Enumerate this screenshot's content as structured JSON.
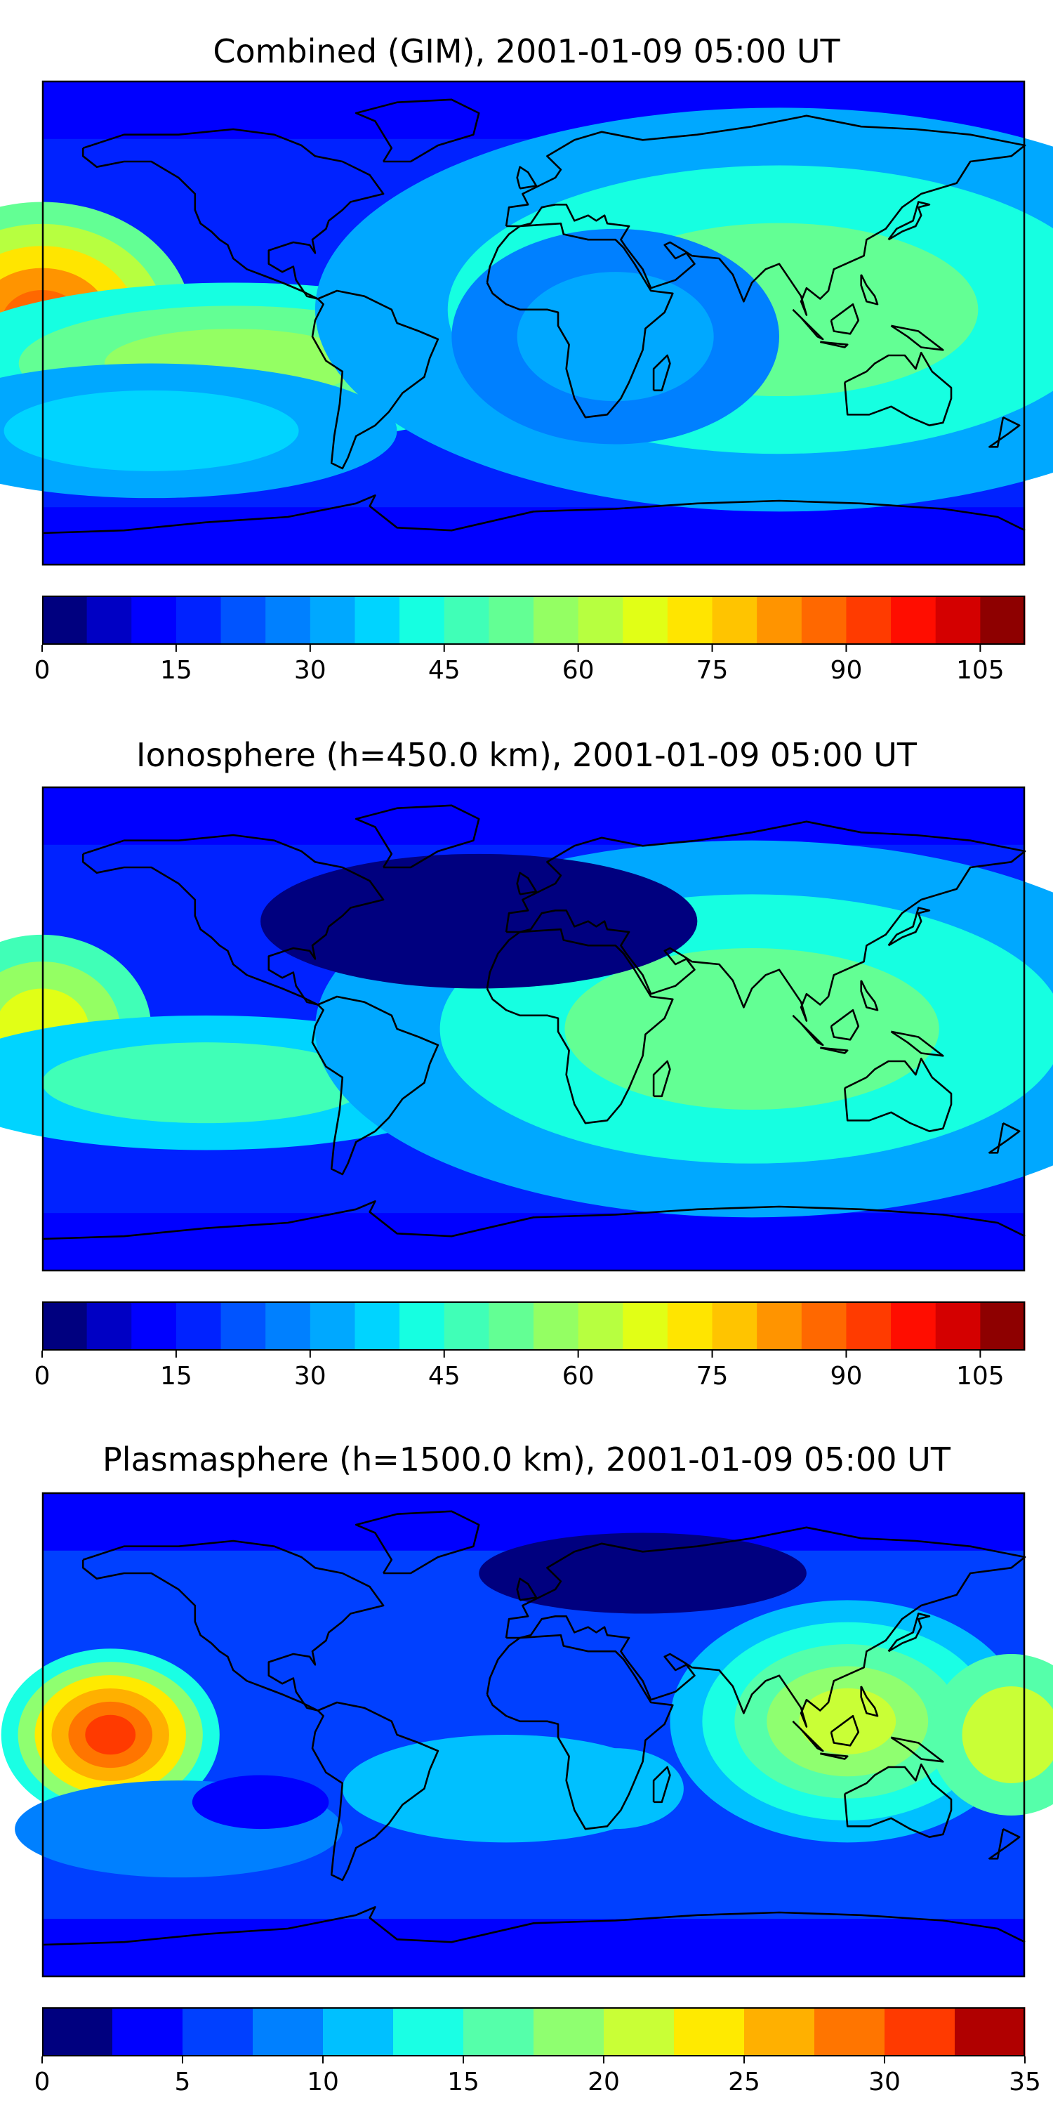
{
  "panels": [
    {
      "title": "Combined (GIM), 2001-01-09 05:00 UT",
      "colorbar": {
        "min": 0,
        "max": 110,
        "levels": 22,
        "ticks": [
          "0",
          "15",
          "30",
          "45",
          "60",
          "75",
          "90",
          "105"
        ],
        "tick_values": [
          0,
          15,
          30,
          45,
          60,
          75,
          90,
          105
        ]
      }
    },
    {
      "title": "Ionosphere  (h=450.0 km), 2001-01-09 05:00 UT",
      "colorbar": {
        "min": 0,
        "max": 110,
        "levels": 22,
        "ticks": [
          "0",
          "15",
          "30",
          "45",
          "60",
          "75",
          "90",
          "105"
        ],
        "tick_values": [
          0,
          15,
          30,
          45,
          60,
          75,
          90,
          105
        ]
      }
    },
    {
      "title": "Plasmasphere (h=1500.0 km), 2001-01-09 05:00 UT",
      "colorbar": {
        "min": 0,
        "max": 35,
        "levels": 14,
        "ticks": [
          "0",
          "5",
          "10",
          "15",
          "20",
          "25",
          "30",
          "35"
        ],
        "tick_values": [
          0,
          5,
          10,
          15,
          20,
          25,
          30,
          35
        ]
      }
    }
  ],
  "colormap": [
    "#00007f",
    "#0000c4",
    "#0000ff",
    "#0022ff",
    "#0054ff",
    "#0080ff",
    "#00a8ff",
    "#00d4ff",
    "#16ffe1",
    "#40ffb7",
    "#63ff94",
    "#94ff63",
    "#b7ff40",
    "#e1ff16",
    "#ffe500",
    "#ffc400",
    "#ff9400",
    "#ff6800",
    "#ff3b00",
    "#ff0d00",
    "#d40000",
    "#8e0000"
  ],
  "plasma_colormap": [
    "#00007f",
    "#0000ff",
    "#0040ff",
    "#0080ff",
    "#00c0ff",
    "#1affe4",
    "#55ffaa",
    "#8fff70",
    "#c9ff36",
    "#ffea00",
    "#ffb000",
    "#ff7500",
    "#ff3a00",
    "#b00000"
  ]
}
